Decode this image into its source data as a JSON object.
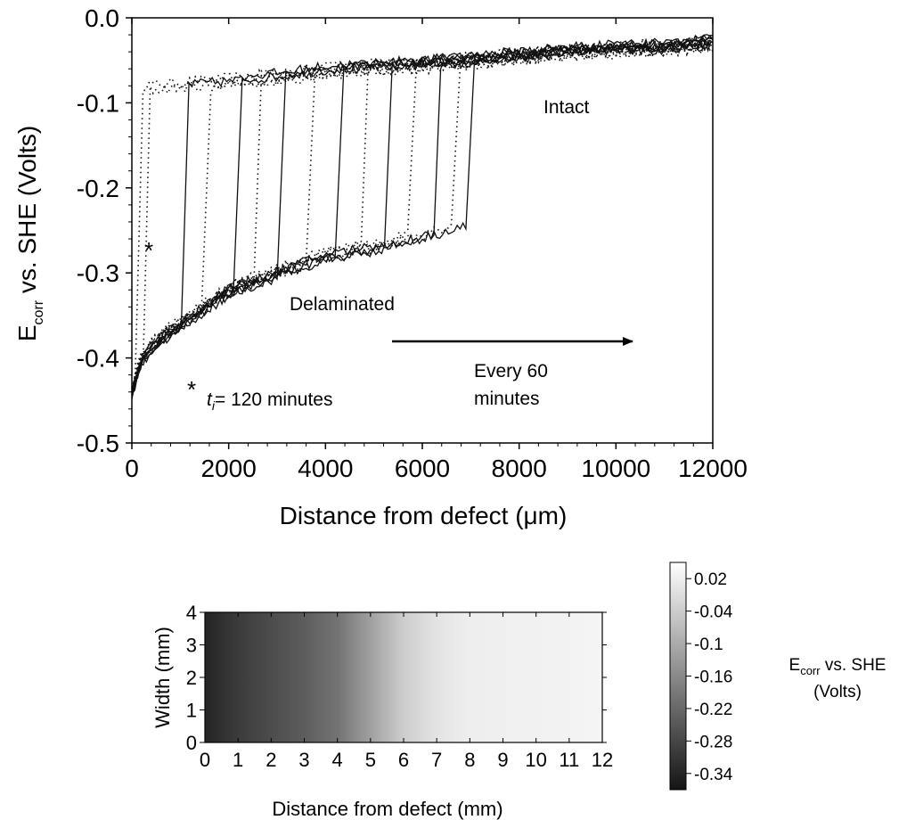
{
  "chart_data": [
    {
      "type": "line",
      "title": "",
      "xlabel": "Distance from defect (μm)",
      "ylabel": "E_corr vs. SHE (Volts)",
      "ylabel_main": "E",
      "ylabel_sub": "corr",
      "ylabel_rest": " vs. SHE (Volts)",
      "xlim": [
        0,
        12000
      ],
      "ylim": [
        -0.5,
        0.0
      ],
      "xticks": [
        "0",
        "2000",
        "4000",
        "6000",
        "8000",
        "10000",
        "12000"
      ],
      "xtick_values": [
        0,
        2000,
        4000,
        6000,
        8000,
        10000,
        12000
      ],
      "yticks": [
        "0.0",
        "-0.1",
        "-0.2",
        "-0.3",
        "-0.4",
        "-0.5"
      ],
      "ytick_values": [
        0.0,
        -0.1,
        -0.2,
        -0.3,
        -0.4,
        -0.5
      ],
      "front_positions": [
        150,
        300,
        1100,
        1550,
        2200,
        2600,
        3100,
        3700,
        4300,
        4800,
        5300,
        5800,
        6300,
        6700,
        7000
      ],
      "front_styles": [
        "dotted",
        "dotted",
        "solid",
        "dotted",
        "solid",
        "dotted",
        "solid",
        "dotted",
        "solid",
        "dotted",
        "solid",
        "dotted",
        "solid",
        "dotted",
        "solid"
      ],
      "delaminated_curve": {
        "x": [
          0,
          200,
          500,
          1000,
          1500,
          2000,
          3000,
          4000,
          5000,
          6000,
          6900
        ],
        "y": [
          -0.44,
          -0.4,
          -0.38,
          -0.36,
          -0.34,
          -0.32,
          -0.3,
          -0.28,
          -0.27,
          -0.255,
          -0.24
        ]
      },
      "intact_curve": {
        "x": [
          0,
          1000,
          2000,
          3000,
          4000,
          5000,
          6000,
          7000,
          8000,
          9000,
          10000,
          11000,
          12000
        ],
        "y": [
          -0.085,
          -0.08,
          -0.075,
          -0.07,
          -0.062,
          -0.058,
          -0.055,
          -0.05,
          -0.045,
          -0.04,
          -0.037,
          -0.035,
          -0.03
        ]
      },
      "annotations": {
        "intact": "Intact",
        "delaminated": "Delaminated",
        "arrow_label_line1": "Every 60",
        "arrow_label_line2": "minutes",
        "star": "*",
        "ti_prefix": "t",
        "ti_sub": "i",
        "ti_suffix": "= 120 minutes"
      }
    },
    {
      "type": "heatmap",
      "xlabel": "Distance from defect (mm)",
      "ylabel": "Width (mm)",
      "xlim": [
        0,
        12
      ],
      "ylim": [
        0,
        4
      ],
      "xticks": [
        "0",
        "1",
        "2",
        "3",
        "4",
        "5",
        "6",
        "7",
        "8",
        "9",
        "10",
        "11",
        "12"
      ],
      "yticks": [
        "0",
        "1",
        "2",
        "3",
        "4"
      ],
      "profile_x_mm": [
        0,
        0.5,
        1,
        2,
        3,
        4,
        5,
        6,
        7,
        8,
        12
      ],
      "profile_value": [
        -0.34,
        -0.32,
        -0.3,
        -0.27,
        -0.24,
        -0.2,
        -0.12,
        -0.04,
        0.0,
        0.02,
        0.03
      ],
      "colorbar": {
        "range": [
          -0.37,
          0.05
        ],
        "ticks": [
          "0.02",
          "-0.04",
          "-0.1",
          "-0.16",
          "-0.22",
          "-0.28",
          "-0.34"
        ],
        "tick_values": [
          0.02,
          -0.04,
          -0.1,
          -0.16,
          -0.22,
          -0.28,
          -0.34
        ],
        "label_main": "E",
        "label_sub": "corr",
        "label_rest": " vs. SHE",
        "label_line2": "(Volts)"
      }
    }
  ]
}
